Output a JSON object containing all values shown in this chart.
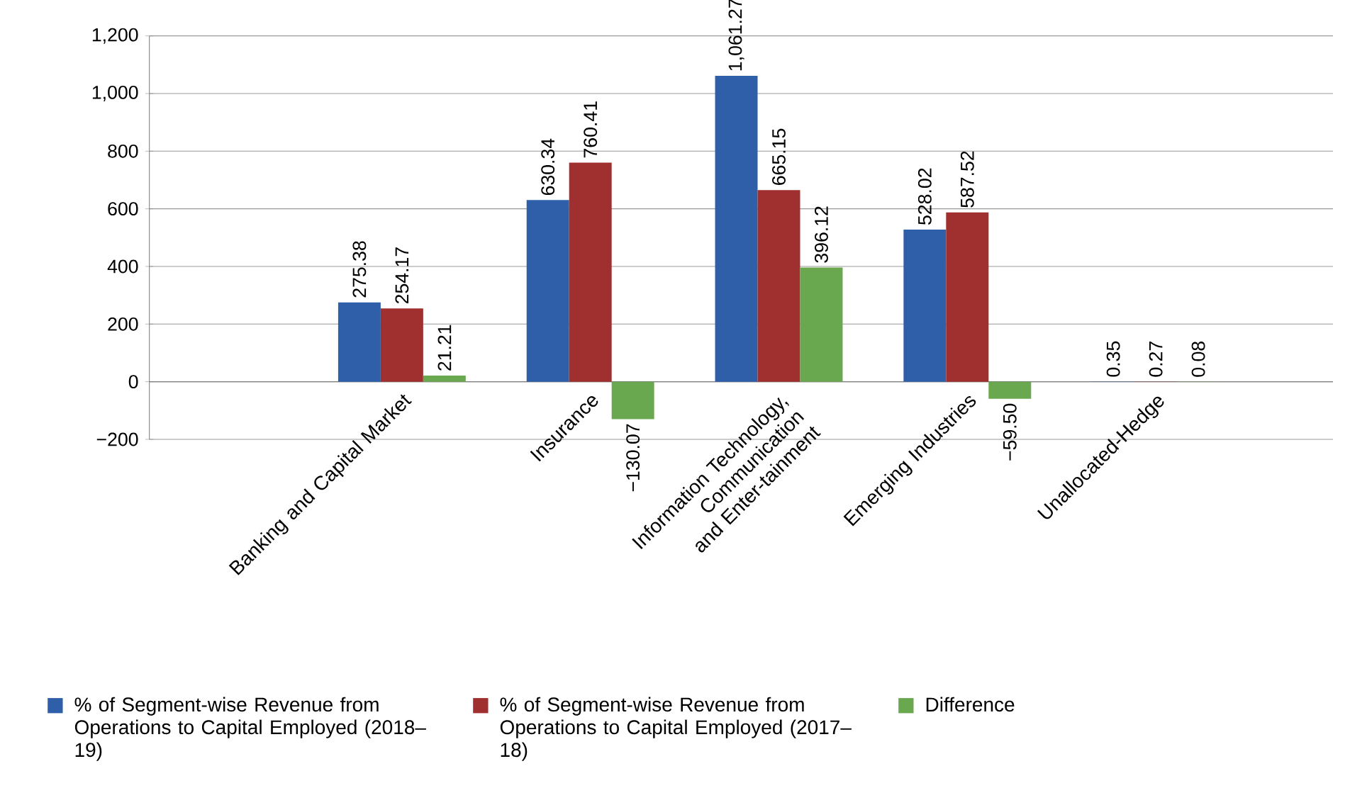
{
  "chart_data": {
    "type": "bar",
    "categories": [
      "Banking and Capital Market",
      "Insurance",
      "Information Technology, Communication and Enter-tainment",
      "Emerging Industries",
      "Unallocated-Hedge"
    ],
    "series": [
      {
        "name": "% of Segment-wise Revenue from Operations to Capital Employed (2018–19)",
        "color": "#2e5fa8",
        "values": [
          275.38,
          630.34,
          1061.27,
          528.02,
          0.35
        ],
        "value_labels": [
          "275.38",
          "630.34",
          "1,061.27",
          "528.02",
          "0.35"
        ]
      },
      {
        "name": "% of Segment-wise Revenue from Operations to Capital Employed (2017–18)",
        "color": "#a0302f",
        "values": [
          254.17,
          760.41,
          665.15,
          587.52,
          0.27
        ],
        "value_labels": [
          "254.17",
          "760.41",
          "665.15",
          "587.52",
          "0.27"
        ]
      },
      {
        "name": "Difference",
        "color": "#6aa84f",
        "values": [
          21.21,
          -130.07,
          396.12,
          -59.5,
          0.08
        ],
        "value_labels": [
          "21.21",
          "−130.07",
          "396.12",
          "−59.50",
          "0.08"
        ]
      }
    ],
    "ylim": [
      -200,
      1200
    ],
    "yticks": [
      {
        "value": -200,
        "label": "−200"
      },
      0,
      200,
      400,
      600,
      800,
      {
        "value": 1000,
        "label": "1,000"
      },
      {
        "value": 1200,
        "label": "1,200"
      }
    ],
    "grid": "y",
    "legend": "bottom"
  }
}
